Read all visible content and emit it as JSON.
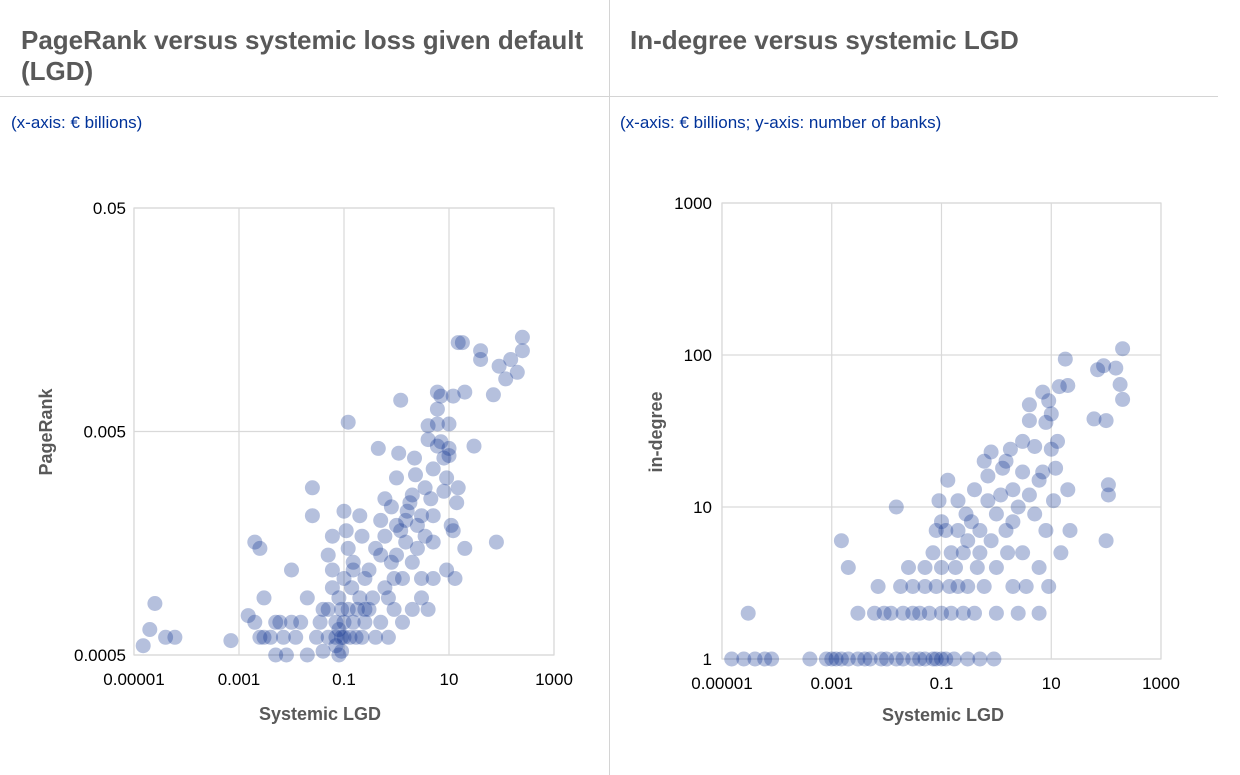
{
  "left": {
    "title": "PageRank versus systemic loss given default (LGD)",
    "subtitle": "(x-axis: € billions)"
  },
  "right": {
    "title": "In-degree versus systemic LGD",
    "subtitle": "(x-axis: € billions; y-axis: number of banks)"
  },
  "colors": {
    "marker": "#0a2f8f",
    "marker_opacity": 0.3,
    "grid": "#d9d9d9",
    "title": "#595959",
    "subtitle": "#003299"
  },
  "chart_data": [
    {
      "type": "scatter",
      "title": "PageRank versus systemic loss given default (LGD)",
      "xlabel": "Systemic LGD",
      "ylabel": "PageRank",
      "xscale": "log",
      "yscale": "log",
      "xlim": [
        1e-05,
        1000
      ],
      "ylim": [
        0.0005,
        0.05
      ],
      "xticks": [
        "0.00001",
        "0.001",
        "0.1",
        "10",
        "1000"
      ],
      "yticks": [
        "0.0005",
        "0.005",
        "0.05"
      ],
      "grid": true,
      "points": [
        [
          1.5e-05,
          0.00055
        ],
        [
          2e-05,
          0.00065
        ],
        [
          2.5e-05,
          0.00085
        ],
        [
          4e-05,
          0.0006
        ],
        [
          6e-05,
          0.0006
        ],
        [
          0.0007,
          0.00058
        ],
        [
          0.0015,
          0.00075
        ],
        [
          0.002,
          0.0007
        ],
        [
          0.0025,
          0.0006
        ],
        [
          0.003,
          0.0006
        ],
        [
          0.002,
          0.0016
        ],
        [
          0.0025,
          0.0015
        ],
        [
          0.003,
          0.0009
        ],
        [
          0.004,
          0.0006
        ],
        [
          0.005,
          0.0007
        ],
        [
          0.005,
          0.0005
        ],
        [
          0.006,
          0.0007
        ],
        [
          0.007,
          0.0006
        ],
        [
          0.008,
          0.0005
        ],
        [
          0.01,
          0.0007
        ],
        [
          0.01,
          0.0012
        ],
        [
          0.012,
          0.0006
        ],
        [
          0.015,
          0.0007
        ],
        [
          0.02,
          0.0005
        ],
        [
          0.02,
          0.0009
        ],
        [
          0.025,
          0.0028
        ],
        [
          0.025,
          0.0021
        ],
        [
          0.03,
          0.0006
        ],
        [
          0.035,
          0.0007
        ],
        [
          0.04,
          0.0008
        ],
        [
          0.04,
          0.00052
        ],
        [
          0.05,
          0.0008
        ],
        [
          0.05,
          0.0006
        ],
        [
          0.05,
          0.0014
        ],
        [
          0.06,
          0.0017
        ],
        [
          0.06,
          0.001
        ],
        [
          0.06,
          0.0012
        ],
        [
          0.07,
          0.0007
        ],
        [
          0.07,
          0.00055
        ],
        [
          0.07,
          0.0006
        ],
        [
          0.08,
          0.0005
        ],
        [
          0.08,
          0.0009
        ],
        [
          0.08,
          0.00065
        ],
        [
          0.09,
          0.0008
        ],
        [
          0.09,
          0.0006
        ],
        [
          0.09,
          0.00052
        ],
        [
          0.1,
          0.0011
        ],
        [
          0.1,
          0.0006
        ],
        [
          0.1,
          0.0007
        ],
        [
          0.1,
          0.0022
        ],
        [
          0.11,
          0.0018
        ],
        [
          0.12,
          0.0008
        ],
        [
          0.12,
          0.0015
        ],
        [
          0.12,
          0.0055
        ],
        [
          0.13,
          0.0006
        ],
        [
          0.14,
          0.001
        ],
        [
          0.15,
          0.0012
        ],
        [
          0.15,
          0.0007
        ],
        [
          0.15,
          0.0013
        ],
        [
          0.17,
          0.0006
        ],
        [
          0.18,
          0.0008
        ],
        [
          0.2,
          0.0021
        ],
        [
          0.2,
          0.0009
        ],
        [
          0.22,
          0.0006
        ],
        [
          0.22,
          0.0017
        ],
        [
          0.25,
          0.0007
        ],
        [
          0.25,
          0.0011
        ],
        [
          0.25,
          0.0008
        ],
        [
          0.3,
          0.0008
        ],
        [
          0.3,
          0.0012
        ],
        [
          0.35,
          0.0009
        ],
        [
          0.4,
          0.0006
        ],
        [
          0.4,
          0.0015
        ],
        [
          0.45,
          0.0042
        ],
        [
          0.5,
          0.0007
        ],
        [
          0.5,
          0.002
        ],
        [
          0.5,
          0.0014
        ],
        [
          0.6,
          0.001
        ],
        [
          0.6,
          0.0025
        ],
        [
          0.6,
          0.0017
        ],
        [
          0.7,
          0.0009
        ],
        [
          0.7,
          0.0006
        ],
        [
          0.8,
          0.0013
        ],
        [
          0.8,
          0.0023
        ],
        [
          0.9,
          0.0008
        ],
        [
          0.9,
          0.0011
        ],
        [
          1,
          0.0031
        ],
        [
          1,
          0.0019
        ],
        [
          1,
          0.0014
        ],
        [
          1.1,
          0.004
        ],
        [
          1.2,
          0.0018
        ],
        [
          1.2,
          0.0069
        ],
        [
          1.3,
          0.0011
        ],
        [
          1.3,
          0.0007
        ],
        [
          1.5,
          0.0016
        ],
        [
          1.5,
          0.002
        ],
        [
          1.6,
          0.0022
        ],
        [
          1.8,
          0.0024
        ],
        [
          2,
          0.0026
        ],
        [
          2,
          0.0008
        ],
        [
          2,
          0.0013
        ],
        [
          2.2,
          0.0038
        ],
        [
          2.3,
          0.0032
        ],
        [
          2.5,
          0.0019
        ],
        [
          2.5,
          0.0015
        ],
        [
          3,
          0.0011
        ],
        [
          3,
          0.0009
        ],
        [
          3,
          0.0021
        ],
        [
          3.5,
          0.0028
        ],
        [
          3.5,
          0.0017
        ],
        [
          4,
          0.0008
        ],
        [
          4,
          0.0053
        ],
        [
          4,
          0.0046
        ],
        [
          4.5,
          0.0025
        ],
        [
          5,
          0.0034
        ],
        [
          5,
          0.0011
        ],
        [
          5,
          0.0021
        ],
        [
          5,
          0.0016
        ],
        [
          6,
          0.0075
        ],
        [
          6,
          0.0063
        ],
        [
          6,
          0.0054
        ],
        [
          6,
          0.0043
        ],
        [
          7,
          0.0072
        ],
        [
          7,
          0.0045
        ],
        [
          8,
          0.0027
        ],
        [
          8,
          0.0038
        ],
        [
          9,
          0.0012
        ],
        [
          9,
          0.0031
        ],
        [
          10,
          0.0042
        ],
        [
          10,
          0.0039
        ],
        [
          10,
          0.0054
        ],
        [
          11,
          0.0019
        ],
        [
          12,
          0.0072
        ],
        [
          12,
          0.0018
        ],
        [
          13,
          0.0011
        ],
        [
          14,
          0.0024
        ],
        [
          15,
          0.0028
        ],
        [
          15,
          0.0125
        ],
        [
          18,
          0.0125
        ],
        [
          20,
          0.0075
        ],
        [
          20,
          0.0015
        ],
        [
          30,
          0.0043
        ],
        [
          40,
          0.0105
        ],
        [
          40,
          0.0115
        ],
        [
          70,
          0.0073
        ],
        [
          80,
          0.0016
        ],
        [
          90,
          0.0098
        ],
        [
          120,
          0.0086
        ],
        [
          150,
          0.0105
        ],
        [
          200,
          0.0092
        ],
        [
          250,
          0.0115
        ],
        [
          250,
          0.0132
        ]
      ]
    },
    {
      "type": "scatter",
      "title": "In-degree versus systemic LGD",
      "xlabel": "Systemic LGD",
      "ylabel": "in-degree",
      "xscale": "log",
      "yscale": "log",
      "xlim": [
        1e-05,
        1000
      ],
      "ylim": [
        1,
        1000
      ],
      "xticks": [
        "0.00001",
        "0.001",
        "0.1",
        "10",
        "1000"
      ],
      "yticks": [
        "1",
        "10",
        "100",
        "1000"
      ],
      "grid": true,
      "points": [
        [
          1.5e-05,
          1
        ],
        [
          2.5e-05,
          1
        ],
        [
          3e-05,
          2
        ],
        [
          4e-05,
          1
        ],
        [
          6e-05,
          1
        ],
        [
          8e-05,
          1
        ],
        [
          0.0004,
          1
        ],
        [
          0.0008,
          1
        ],
        [
          0.001,
          1
        ],
        [
          0.0012,
          1
        ],
        [
          0.0015,
          1
        ],
        [
          0.0015,
          6
        ],
        [
          0.002,
          4
        ],
        [
          0.002,
          1
        ],
        [
          0.003,
          1
        ],
        [
          0.003,
          2
        ],
        [
          0.004,
          1
        ],
        [
          0.005,
          1
        ],
        [
          0.006,
          2
        ],
        [
          0.007,
          3
        ],
        [
          0.008,
          1
        ],
        [
          0.009,
          2
        ],
        [
          0.01,
          1
        ],
        [
          0.012,
          2
        ],
        [
          0.015,
          1
        ],
        [
          0.015,
          10
        ],
        [
          0.018,
          3
        ],
        [
          0.02,
          1
        ],
        [
          0.02,
          2
        ],
        [
          0.025,
          4
        ],
        [
          0.03,
          1
        ],
        [
          0.03,
          2
        ],
        [
          0.03,
          3
        ],
        [
          0.04,
          1
        ],
        [
          0.04,
          2
        ],
        [
          0.05,
          4
        ],
        [
          0.05,
          1
        ],
        [
          0.05,
          3
        ],
        [
          0.06,
          2
        ],
        [
          0.07,
          1
        ],
        [
          0.07,
          5
        ],
        [
          0.08,
          1
        ],
        [
          0.08,
          7
        ],
        [
          0.08,
          3
        ],
        [
          0.09,
          11
        ],
        [
          0.1,
          1
        ],
        [
          0.1,
          2
        ],
        [
          0.1,
          4
        ],
        [
          0.1,
          8
        ],
        [
          0.12,
          1
        ],
        [
          0.12,
          7
        ],
        [
          0.13,
          15
        ],
        [
          0.14,
          3
        ],
        [
          0.15,
          2
        ],
        [
          0.15,
          5
        ],
        [
          0.17,
          1
        ],
        [
          0.18,
          4
        ],
        [
          0.2,
          7
        ],
        [
          0.2,
          3
        ],
        [
          0.2,
          11
        ],
        [
          0.25,
          2
        ],
        [
          0.25,
          5
        ],
        [
          0.28,
          9
        ],
        [
          0.3,
          1
        ],
        [
          0.3,
          6
        ],
        [
          0.3,
          3
        ],
        [
          0.35,
          8
        ],
        [
          0.4,
          2
        ],
        [
          0.4,
          13
        ],
        [
          0.45,
          4
        ],
        [
          0.5,
          1
        ],
        [
          0.5,
          7
        ],
        [
          0.5,
          5
        ],
        [
          0.6,
          3
        ],
        [
          0.6,
          20
        ],
        [
          0.7,
          11
        ],
        [
          0.7,
          16
        ],
        [
          0.8,
          6
        ],
        [
          0.8,
          23
        ],
        [
          0.9,
          1
        ],
        [
          1,
          4
        ],
        [
          1,
          9
        ],
        [
          1,
          2
        ],
        [
          1.2,
          12
        ],
        [
          1.3,
          18
        ],
        [
          1.5,
          20
        ],
        [
          1.5,
          7
        ],
        [
          1.6,
          5
        ],
        [
          1.8,
          24
        ],
        [
          2,
          3
        ],
        [
          2,
          13
        ],
        [
          2,
          8
        ],
        [
          2.5,
          10
        ],
        [
          2.5,
          2
        ],
        [
          3,
          17
        ],
        [
          3,
          5
        ],
        [
          3,
          27
        ],
        [
          3.5,
          3
        ],
        [
          4,
          37
        ],
        [
          4,
          47
        ],
        [
          4,
          12
        ],
        [
          5,
          9
        ],
        [
          5,
          25
        ],
        [
          6,
          15
        ],
        [
          6,
          4
        ],
        [
          6,
          2
        ],
        [
          7,
          57
        ],
        [
          7,
          17
        ],
        [
          8,
          36
        ],
        [
          8,
          7
        ],
        [
          9,
          50
        ],
        [
          9,
          3
        ],
        [
          10,
          24
        ],
        [
          10,
          41
        ],
        [
          11,
          11
        ],
        [
          12,
          18
        ],
        [
          13,
          27
        ],
        [
          14,
          62
        ],
        [
          15,
          5
        ],
        [
          18,
          94
        ],
        [
          20,
          63
        ],
        [
          20,
          13
        ],
        [
          22,
          7
        ],
        [
          60,
          38
        ],
        [
          70,
          80
        ],
        [
          90,
          85
        ],
        [
          100,
          37
        ],
        [
          100,
          6
        ],
        [
          110,
          14
        ],
        [
          110,
          12
        ],
        [
          150,
          82
        ],
        [
          180,
          64
        ],
        [
          200,
          110
        ],
        [
          200,
          51
        ]
      ]
    }
  ]
}
